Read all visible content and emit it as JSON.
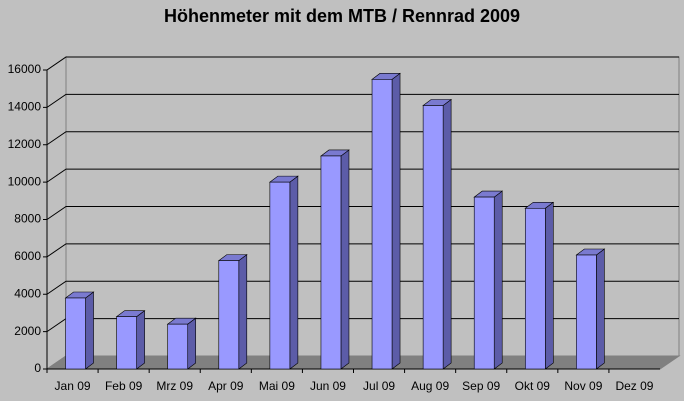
{
  "chart_data": {
    "type": "bar3d",
    "title": "Höhenmeter mit dem MTB / Rennrad 2009",
    "categories": [
      "Jan 09",
      "Feb 09",
      "Mrz 09",
      "Apr 09",
      "Mai 09",
      "Jun 09",
      "Jul 09",
      "Aug 09",
      "Sep 09",
      "Okt 09",
      "Nov 09",
      "Dez 09"
    ],
    "values": [
      3800,
      2800,
      2400,
      5800,
      10000,
      11400,
      15500,
      14100,
      9200,
      8600,
      6100,
      null
    ],
    "color": "#9999ff",
    "ylim": [
      0,
      16000
    ],
    "yticks": [
      0,
      2000,
      4000,
      6000,
      8000,
      10000,
      12000,
      14000,
      16000
    ],
    "grid": true
  }
}
